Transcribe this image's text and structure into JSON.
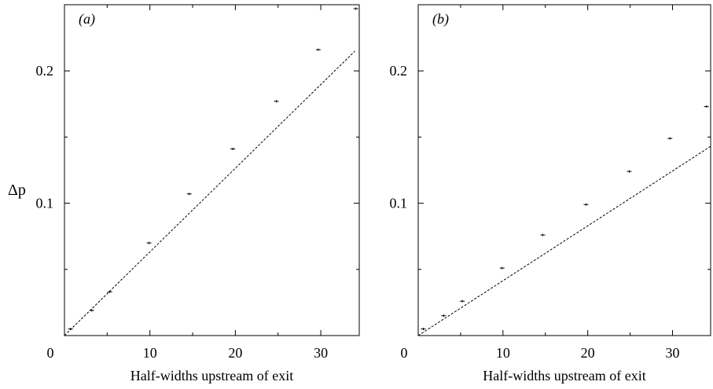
{
  "chart_data": [
    {
      "type": "scatter",
      "panel_label": "(a)",
      "ylabel": "Δp",
      "xlabel": "Half-widths upstream of exit",
      "xlim": [
        0,
        34.5
      ],
      "ylim": [
        0,
        0.25
      ],
      "x_ticks": [
        0,
        10,
        20,
        30
      ],
      "x_tick_labels": [
        "0",
        "10",
        "20",
        "30"
      ],
      "y_ticks": [
        0.1,
        0.2
      ],
      "y_tick_labels": [
        "0.1",
        "0.2"
      ],
      "series": [
        {
          "kind": "points",
          "x": [
            0.7,
            3.2,
            5.3,
            9.9,
            14.6,
            19.7,
            24.8,
            29.7,
            34.1
          ],
          "y": [
            0.005,
            0.019,
            0.033,
            0.07,
            0.107,
            0.141,
            0.177,
            0.216,
            0.247
          ]
        },
        {
          "kind": "dashed-line",
          "x": [
            0,
            34
          ],
          "y": [
            0,
            0.215
          ]
        }
      ]
    },
    {
      "type": "scatter",
      "panel_label": "(b)",
      "ylabel": "",
      "xlabel": "Half-widths upstream of exit",
      "xlim": [
        0,
        34.5
      ],
      "ylim": [
        0,
        0.25
      ],
      "x_ticks": [
        0,
        10,
        20,
        30
      ],
      "x_tick_labels": [
        "0",
        "10",
        "20",
        "30"
      ],
      "y_ticks": [
        0.1,
        0.2
      ],
      "y_tick_labels": [
        "0.1",
        "0.2"
      ],
      "series": [
        {
          "kind": "points",
          "x": [
            0.6,
            3.0,
            5.2,
            9.9,
            14.7,
            19.8,
            24.9,
            29.7,
            34.0
          ],
          "y": [
            0.005,
            0.015,
            0.026,
            0.051,
            0.076,
            0.099,
            0.124,
            0.149,
            0.173
          ]
        },
        {
          "kind": "dashed-line",
          "x": [
            0,
            34.5
          ],
          "y": [
            0,
            0.143
          ]
        }
      ]
    }
  ]
}
